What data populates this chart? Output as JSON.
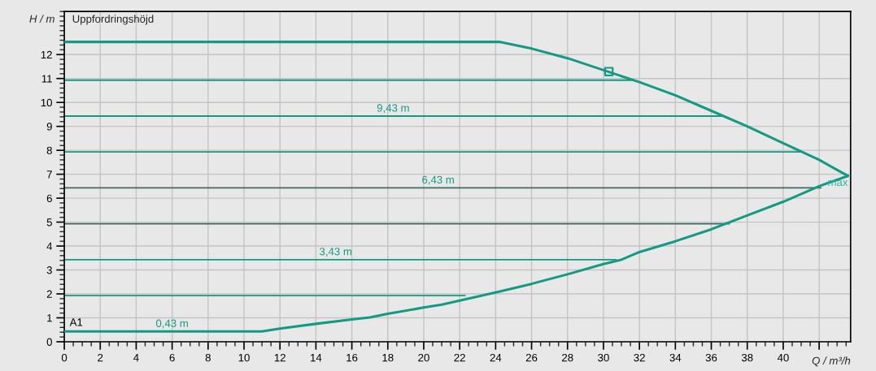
{
  "chart_data": {
    "type": "line",
    "title": "Uppfordringshöjd",
    "xlabel": "Q / m³/h",
    "ylabel": "H / m",
    "xlim": [
      0,
      43.75
    ],
    "ylim": [
      0,
      13.8
    ],
    "xticks": [
      0,
      2,
      4,
      6,
      8,
      10,
      12,
      14,
      16,
      18,
      20,
      22,
      24,
      26,
      28,
      30,
      32,
      34,
      36,
      38,
      40,
      {
        "value": 42,
        "label": null
      }
    ],
    "yticks": [
      0,
      1,
      2,
      3,
      4,
      5,
      6,
      7,
      8,
      9,
      10,
      11,
      12
    ],
    "grid": true,
    "marker": "none",
    "line_style": "solid",
    "series": [
      {
        "color": "#139a83",
        "x": [
          0,
          24.2,
          26,
          28,
          30,
          32,
          34,
          36,
          38,
          40,
          42,
          43.6
        ],
        "values": [
          12.53,
          12.53,
          12.25,
          11.85,
          11.35,
          10.85,
          10.3,
          9.65,
          9.0,
          8.3,
          7.6,
          6.93
        ]
      },
      {
        "color": "#139a83",
        "x": [
          0,
          11,
          12,
          14,
          16,
          17,
          18,
          20,
          21,
          22,
          24,
          26,
          28,
          30,
          31,
          32,
          34,
          36,
          38,
          40,
          42,
          43.6
        ],
        "values": [
          0.43,
          0.43,
          0.55,
          0.75,
          0.93,
          1.02,
          1.17,
          1.43,
          1.55,
          1.72,
          2.06,
          2.42,
          2.82,
          3.25,
          3.43,
          3.75,
          4.2,
          4.7,
          5.28,
          5.85,
          6.5,
          6.93
        ]
      },
      {
        "color": "#139a83",
        "x": [
          0,
          31.7
        ],
        "values": [
          10.93,
          10.93
        ]
      },
      {
        "color": "#139a83",
        "x": [
          0,
          36.6
        ],
        "values": [
          9.43,
          9.43
        ]
      },
      {
        "color": "#139a83",
        "x": [
          0,
          41.0
        ],
        "values": [
          7.93,
          7.93
        ]
      },
      {
        "color": "#3f6a62",
        "x": [
          0,
          42.1
        ],
        "values": [
          6.43,
          6.43
        ]
      },
      {
        "color": "#3f6a62",
        "x": [
          0,
          37.0
        ],
        "values": [
          4.93,
          4.93
        ]
      },
      {
        "color": "#139a83",
        "x": [
          0,
          30.7
        ],
        "values": [
          3.43,
          3.43
        ]
      },
      {
        "color": "#139a83",
        "x": [
          0,
          22.3
        ],
        "values": [
          1.93,
          1.93
        ]
      },
      {
        "type": "scatter",
        "marker": "square",
        "color": "#139a83",
        "x": [
          30.3
        ],
        "values": [
          11.29
        ]
      }
    ],
    "annotations": [
      {
        "text": "9,43 m",
        "x": 18.3,
        "y": 9.43
      },
      {
        "text": "6,43 m",
        "x": 20.8,
        "y": 6.43
      },
      {
        "text": "3,43 m",
        "x": 15.1,
        "y": 3.43
      },
      {
        "text": "0,43 m",
        "x": 6.0,
        "y": 0.43
      },
      {
        "text": "max",
        "x": 43.6,
        "y": 6.93
      },
      {
        "text": "A1",
        "x": 0.3,
        "y": 0.43
      }
    ]
  }
}
